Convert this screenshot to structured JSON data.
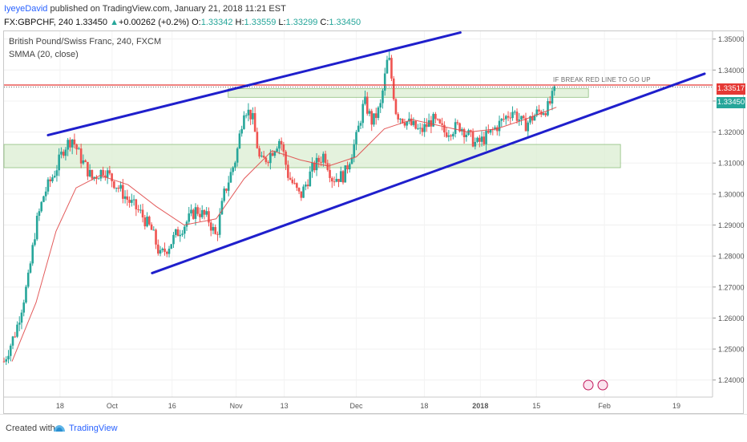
{
  "header": {
    "author": "IyeyeDavid",
    "published": " published on TradingView.com, January 21, 2018 11:21 EST",
    "symbol_line_prefix": "FX:GBPCHF, 240  1.33450 ",
    "change_arrow": "▲",
    "change": "+0.00262 (+0.2%)",
    "o_label": " O:",
    "o_value": "1.33342",
    "h_label": " H:",
    "h_value": "1.33559",
    "l_label": " L:",
    "l_value": "1.33299",
    "c_label": " C:",
    "c_value": "1.33450"
  },
  "legend": {
    "title": "British Pound/Swiss Franc, 240, FXCM",
    "indicator": "SMMA (20, close)"
  },
  "annotation": "IF BREAK RED LINE TO GO UP",
  "price_labels": {
    "red_line": "1.33517",
    "last_price": "1.33450"
  },
  "footer": {
    "created_with": "Created with",
    "brand": "TradingView"
  },
  "colors": {
    "up_candle": "#26a69a",
    "down_candle": "#ef5350",
    "trend_lines": "#1f1fcc",
    "red_line": "#e53935",
    "zone_fill": "#dbeed2",
    "smma": "#e04848",
    "brand": "#2962ff"
  },
  "chart_data": {
    "type": "candlestick",
    "title": "British Pound/Swiss Franc, 240, FXCM",
    "ylim": [
      1.2345,
      1.3525
    ],
    "yticks": [
      1.24,
      1.25,
      1.26,
      1.27,
      1.28,
      1.29,
      1.3,
      1.31,
      1.32,
      1.33,
      1.34,
      1.35
    ],
    "ytick_labels": [
      "1.24000",
      "1.25000",
      "1.26000",
      "1.27000",
      "1.28000",
      "1.29000",
      "1.30000",
      "1.31000",
      "1.32000",
      "1.33000",
      "1.34000",
      "1.35000"
    ],
    "xticks": [
      "18",
      "Oct",
      "16",
      "Nov",
      "13",
      "Dec",
      "18",
      "2018",
      "15",
      "Feb",
      "19"
    ],
    "xtick_dates": [
      "2017-09-18",
      "2017-10-01",
      "2017-10-16",
      "2017-11-01",
      "2017-11-13",
      "2017-12-01",
      "2017-12-18",
      "2018-01-01",
      "2018-01-15",
      "2018-02-01",
      "2018-02-19"
    ],
    "date_range": [
      "2017-09-04",
      "2018-02-28"
    ],
    "close_path": [
      [
        "2017-09-04",
        1.246
      ],
      [
        "2017-09-07",
        1.256
      ],
      [
        "2017-09-10",
        1.272
      ],
      [
        "2017-09-12",
        1.29
      ],
      [
        "2017-09-14",
        1.3
      ],
      [
        "2017-09-17",
        1.308
      ],
      [
        "2017-09-19",
        1.315
      ],
      [
        "2017-09-21",
        1.318
      ],
      [
        "2017-09-23",
        1.312
      ],
      [
        "2017-09-26",
        1.305
      ],
      [
        "2017-09-29",
        1.308
      ],
      [
        "2017-10-02",
        1.303
      ],
      [
        "2017-10-05",
        1.298
      ],
      [
        "2017-10-08",
        1.294
      ],
      [
        "2017-10-11",
        1.288
      ],
      [
        "2017-10-13",
        1.28
      ],
      [
        "2017-10-15",
        1.283
      ],
      [
        "2017-10-17",
        1.287
      ],
      [
        "2017-10-19",
        1.29
      ],
      [
        "2017-10-22",
        1.295
      ],
      [
        "2017-10-25",
        1.292
      ],
      [
        "2017-10-27",
        1.286
      ],
      [
        "2017-10-29",
        1.3
      ],
      [
        "2017-11-01",
        1.312
      ],
      [
        "2017-11-03",
        1.328
      ],
      [
        "2017-11-05",
        1.325
      ],
      [
        "2017-11-07",
        1.31
      ],
      [
        "2017-11-09",
        1.312
      ],
      [
        "2017-11-12",
        1.318
      ],
      [
        "2017-11-14",
        1.306
      ],
      [
        "2017-11-17",
        1.299
      ],
      [
        "2017-11-20",
        1.308
      ],
      [
        "2017-11-23",
        1.313
      ],
      [
        "2017-11-25",
        1.305
      ],
      [
        "2017-11-28",
        1.306
      ],
      [
        "2017-12-01",
        1.318
      ],
      [
        "2017-12-03",
        1.33
      ],
      [
        "2017-12-05",
        1.323
      ],
      [
        "2017-12-07",
        1.328
      ],
      [
        "2017-12-09",
        1.345
      ],
      [
        "2017-12-11",
        1.326
      ],
      [
        "2017-12-14",
        1.323
      ],
      [
        "2017-12-17",
        1.32
      ],
      [
        "2017-12-20",
        1.324
      ],
      [
        "2017-12-23",
        1.32
      ],
      [
        "2017-12-27",
        1.322
      ],
      [
        "2017-12-31",
        1.316
      ],
      [
        "2018-01-03",
        1.319
      ],
      [
        "2018-01-06",
        1.323
      ],
      [
        "2018-01-09",
        1.327
      ],
      [
        "2018-01-12",
        1.322
      ],
      [
        "2018-01-15",
        1.326
      ],
      [
        "2018-01-18",
        1.328
      ],
      [
        "2018-01-20",
        1.3345
      ]
    ],
    "smma_path": [
      [
        "2017-09-06",
        1.246
      ],
      [
        "2017-09-12",
        1.265
      ],
      [
        "2017-09-17",
        1.288
      ],
      [
        "2017-09-22",
        1.302
      ],
      [
        "2017-09-28",
        1.306
      ],
      [
        "2017-10-05",
        1.303
      ],
      [
        "2017-10-12",
        1.296
      ],
      [
        "2017-10-19",
        1.29
      ],
      [
        "2017-10-27",
        1.292
      ],
      [
        "2017-11-03",
        1.305
      ],
      [
        "2017-11-10",
        1.314
      ],
      [
        "2017-11-17",
        1.311
      ],
      [
        "2017-11-24",
        1.309
      ],
      [
        "2017-12-01",
        1.312
      ],
      [
        "2017-12-08",
        1.321
      ],
      [
        "2017-12-15",
        1.324
      ],
      [
        "2017-12-22",
        1.322
      ],
      [
        "2017-12-29",
        1.32
      ],
      [
        "2018-01-05",
        1.321
      ],
      [
        "2018-01-12",
        1.324
      ],
      [
        "2018-01-20",
        1.328
      ]
    ],
    "trend_lines": [
      {
        "name": "upper-channel",
        "from": [
          "2017-09-15",
          1.319
        ],
        "to": [
          "2017-12-27",
          1.3521
        ]
      },
      {
        "name": "lower-channel",
        "from": [
          "2017-10-11",
          1.2745
        ],
        "to": [
          "2018-02-26",
          1.3388
        ]
      }
    ],
    "horizontal_lines": [
      {
        "name": "resistance-red-line",
        "price": 1.33517
      }
    ],
    "zones": [
      {
        "name": "support-zone",
        "from_date": "2017-09-04",
        "to_date": "2018-02-05",
        "y_low": 1.3085,
        "y_high": 1.316
      },
      {
        "name": "resistance-zone",
        "from_date": "2017-10-30",
        "to_date": "2018-01-28",
        "y_low": 1.3312,
        "y_high": 1.334
      }
    ],
    "last_price": 1.3345,
    "grid": true
  }
}
